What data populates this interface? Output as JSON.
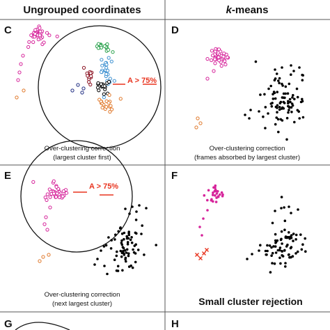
{
  "headers": {
    "left": "Ungrouped coordinates",
    "right_prefix": "k",
    "right_suffix": "-means"
  },
  "panels": {
    "C": {
      "label": "C",
      "caption_line1": "Over-clustering correction",
      "caption_line2": "(largest cluster first)",
      "annotation": "A > 75%"
    },
    "D": {
      "label": "D",
      "caption_line1": "Over-clustering correction",
      "caption_line2": "(frames absorbed by largest cluster)"
    },
    "E": {
      "label": "E",
      "caption_line1": "Over-clustering correction",
      "caption_line2": "(next largest cluster)",
      "annotation": "A > 75%"
    },
    "F": {
      "label": "F",
      "caption": "Small cluster rejection"
    },
    "G": {
      "label": "G"
    },
    "H": {
      "label": "H"
    }
  },
  "colors": {
    "magenta": "#d6239a",
    "orange": "#e0782a",
    "green": "#27a04a",
    "blue": "#3a8fd0",
    "navy": "#1c2a80",
    "darkred": "#8a1020",
    "red": "#e8331e",
    "black": "#000000",
    "grid": "#555555"
  }
}
